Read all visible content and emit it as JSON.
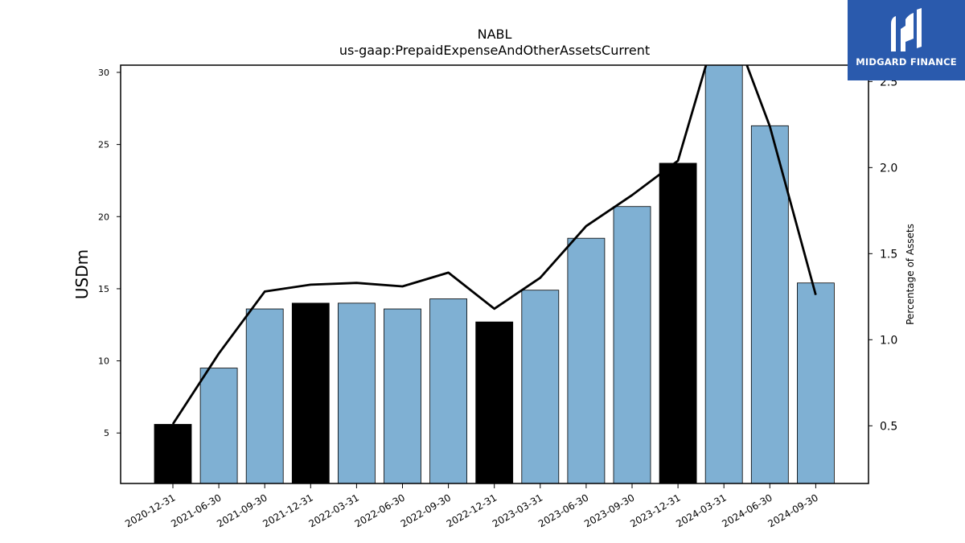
{
  "chart_data": {
    "type": "bar",
    "title": "NABL",
    "subtitle": "us-gaap:PrepaidExpenseAndOtherAssetsCurrent",
    "ylabel": "USDm",
    "y2label": "Percentage of Assets",
    "categories": [
      "2020-12-31",
      "2021-06-30",
      "2021-09-30",
      "2021-12-31",
      "2022-03-31",
      "2022-06-30",
      "2022-09-30",
      "2022-12-31",
      "2023-03-31",
      "2023-06-30",
      "2023-09-30",
      "2023-12-31",
      "2024-03-31",
      "2024-06-30",
      "2024-09-30"
    ],
    "series": [
      {
        "type": "bar",
        "values": [
          5.6,
          9.5,
          13.6,
          14.0,
          14.0,
          13.6,
          14.3,
          12.7,
          14.9,
          18.5,
          20.7,
          23.7,
          30.6,
          26.3,
          15.4
        ],
        "colors": [
          "#000000",
          "#7fb0d3",
          "#7fb0d3",
          "#000000",
          "#7fb0d3",
          "#7fb0d3",
          "#7fb0d3",
          "#000000",
          "#7fb0d3",
          "#7fb0d3",
          "#7fb0d3",
          "#000000",
          "#7fb0d3",
          "#7fb0d3",
          "#7fb0d3"
        ]
      },
      {
        "type": "line",
        "axis": "right",
        "values": [
          0.51,
          0.92,
          1.28,
          1.32,
          1.33,
          1.31,
          1.39,
          1.18,
          1.36,
          1.66,
          1.84,
          2.04,
          2.95,
          2.24,
          1.26
        ],
        "color": "#000000"
      }
    ],
    "ylim": [
      1.5,
      30.5
    ],
    "y2lim": [
      0.165,
      2.595
    ],
    "yticks": [
      5,
      10,
      15,
      20,
      25,
      30
    ],
    "y2ticks": [
      0.5,
      1.0,
      1.5,
      2.0,
      2.5
    ],
    "y2tick_labels": [
      "0.5",
      "1.0",
      "1.5",
      "2.0",
      "2.5"
    ],
    "grid": false
  },
  "logo": {
    "text": "MIDGARD FINANCE"
  }
}
